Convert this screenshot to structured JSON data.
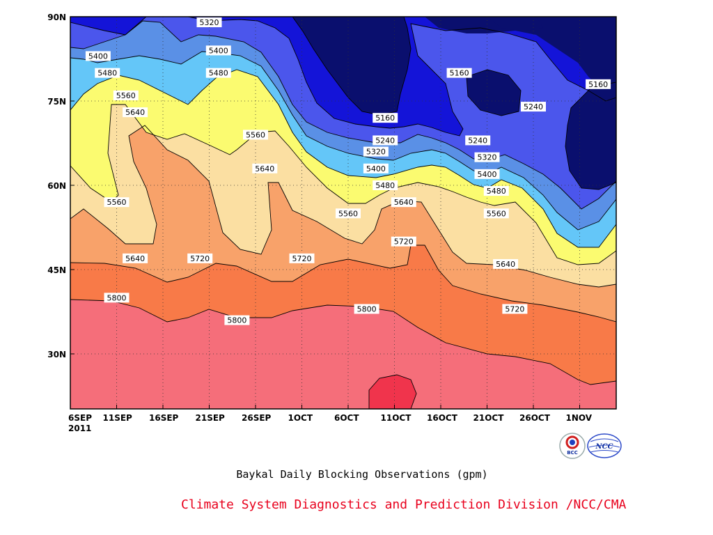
{
  "chart_data": {
    "type": "contour",
    "title": "Baykal Daily Blocking Observations (gpm)",
    "x_tick_labels": [
      "6SEP",
      "11SEP",
      "16SEP",
      "21SEP",
      "26SEP",
      "1OCT",
      "6OCT",
      "11OCT",
      "16OCT",
      "21OCT",
      "26OCT",
      "1NOV"
    ],
    "x_year_label": "2011",
    "y_tick_labels": [
      "90N",
      "75N",
      "60N",
      "45N",
      "30N"
    ],
    "contour_levels": [
      5160,
      5240,
      5320,
      5400,
      5480,
      5560,
      5640,
      5720,
      5800
    ],
    "contour_labels": [
      {
        "text": "5320",
        "x": "21SEP",
        "y": "89N"
      },
      {
        "text": "5400",
        "x": "9SEP",
        "y": "83N"
      },
      {
        "text": "5400",
        "x": "22SEP",
        "y": "84N"
      },
      {
        "text": "5480",
        "x": "10SEP",
        "y": "80N"
      },
      {
        "text": "5480",
        "x": "22SEP",
        "y": "80N"
      },
      {
        "text": "5560",
        "x": "12SEP",
        "y": "76N"
      },
      {
        "text": "5640",
        "x": "13SEP",
        "y": "73N"
      },
      {
        "text": "5560",
        "x": "11SEP",
        "y": "57N"
      },
      {
        "text": "5640",
        "x": "13SEP",
        "y": "47N"
      },
      {
        "text": "5720",
        "x": "20SEP",
        "y": "47N"
      },
      {
        "text": "5800",
        "x": "11SEP",
        "y": "40N"
      },
      {
        "text": "5800",
        "x": "24SEP",
        "y": "36N"
      },
      {
        "text": "5560",
        "x": "26SEP",
        "y": "69N"
      },
      {
        "text": "5640",
        "x": "27SEP",
        "y": "63N"
      },
      {
        "text": "5720",
        "x": "1OCT",
        "y": "47N"
      },
      {
        "text": "5560",
        "x": "6OCT",
        "y": "55N"
      },
      {
        "text": "5800",
        "x": "8OCT",
        "y": "38N"
      },
      {
        "text": "5160",
        "x": "10OCT",
        "y": "72N"
      },
      {
        "text": "5240",
        "x": "10OCT",
        "y": "68N"
      },
      {
        "text": "5320",
        "x": "9OCT",
        "y": "66N"
      },
      {
        "text": "5400",
        "x": "9OCT",
        "y": "63N"
      },
      {
        "text": "5480",
        "x": "10OCT",
        "y": "60N"
      },
      {
        "text": "5640",
        "x": "12OCT",
        "y": "57N"
      },
      {
        "text": "5720",
        "x": "12OCT",
        "y": "50N"
      },
      {
        "text": "5160",
        "x": "18OCT",
        "y": "80N"
      },
      {
        "text": "5240",
        "x": "20OCT",
        "y": "68N"
      },
      {
        "text": "5320",
        "x": "21OCT",
        "y": "65N"
      },
      {
        "text": "5400",
        "x": "21OCT",
        "y": "62N"
      },
      {
        "text": "5480",
        "x": "22OCT",
        "y": "59N"
      },
      {
        "text": "5560",
        "x": "22OCT",
        "y": "55N"
      },
      {
        "text": "5640",
        "x": "23OCT",
        "y": "46N"
      },
      {
        "text": "5720",
        "x": "24OCT",
        "y": "38N"
      },
      {
        "text": "5240",
        "x": "26OCT",
        "y": "74N"
      },
      {
        "text": "5160",
        "x": "2NOV",
        "y": "78N"
      }
    ],
    "grid": true
  },
  "footer": "Climate System Diagnostics and Prediction Division /NCC/CMA",
  "logos": [
    "BCC",
    "NCC"
  ],
  "colors": {
    "c1": "#0a0f6e",
    "c2": "#1414d8",
    "c3": "#4b56ec",
    "c4": "#5a90e6",
    "c5": "#64c6f8",
    "c6": "#fbfb70",
    "c7": "#fbdfa2",
    "c8": "#f8a26a",
    "c9": "#f87a48",
    "c10": "#f56e7a",
    "c11": "#f0344c"
  }
}
